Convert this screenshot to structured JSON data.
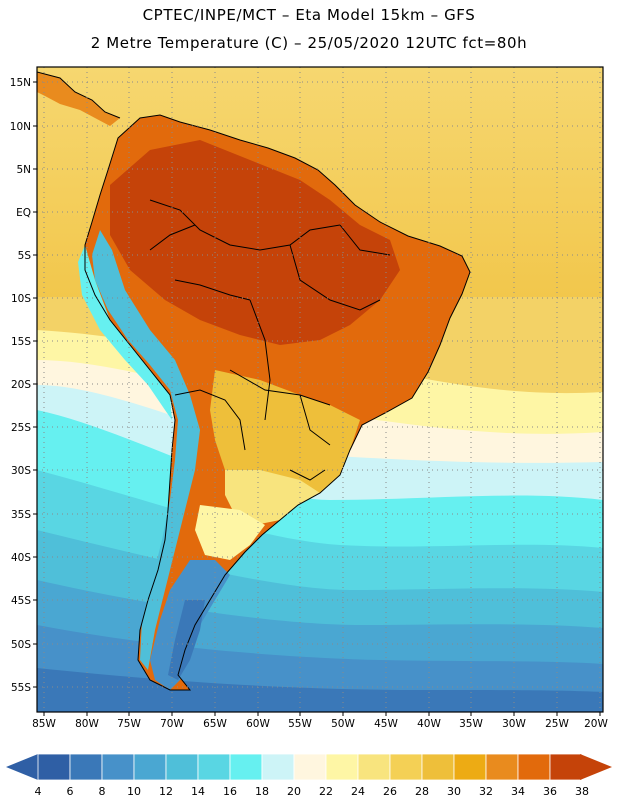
{
  "header": {
    "line1": "CPTEC/INPE/MCT –  Eta Model 15km – GFS",
    "line2": "2 Metre Temperature (C) – 25/05/2020 12UTC fct=80h"
  },
  "axes": {
    "lat_labels": [
      "15N",
      "10N",
      "5N",
      "EQ",
      "5S",
      "10S",
      "15S",
      "20S",
      "25S",
      "30S",
      "35S",
      "40S",
      "45S",
      "50S",
      "55S"
    ],
    "lon_labels": [
      "85W",
      "80W",
      "75W",
      "70W",
      "65W",
      "60W",
      "55W",
      "50W",
      "45W",
      "40W",
      "35W",
      "30W",
      "25W",
      "20W"
    ]
  },
  "colorbar": {
    "labels": [
      "4",
      "6",
      "8",
      "10",
      "12",
      "14",
      "16",
      "18",
      "20",
      "22",
      "24",
      "26",
      "28",
      "30",
      "32",
      "34",
      "36",
      "38"
    ],
    "colors": [
      "#2f5fa5",
      "#3a78b8",
      "#4791c9",
      "#4aa7d2",
      "#4fbfd9",
      "#59d6e3",
      "#66f0f0",
      "#cdf4f7",
      "#fff6df",
      "#fef6a5",
      "#f8e47e",
      "#f4d055",
      "#eebf3a",
      "#edab14",
      "#e98b1e",
      "#e26a0c",
      "#c54309"
    ],
    "low_arrow_color": "#2f5fa5",
    "high_arrow_color": "#c54309"
  },
  "map": {
    "ocean_color": "#f3d26a",
    "grid_color": "#8a8a8a"
  }
}
